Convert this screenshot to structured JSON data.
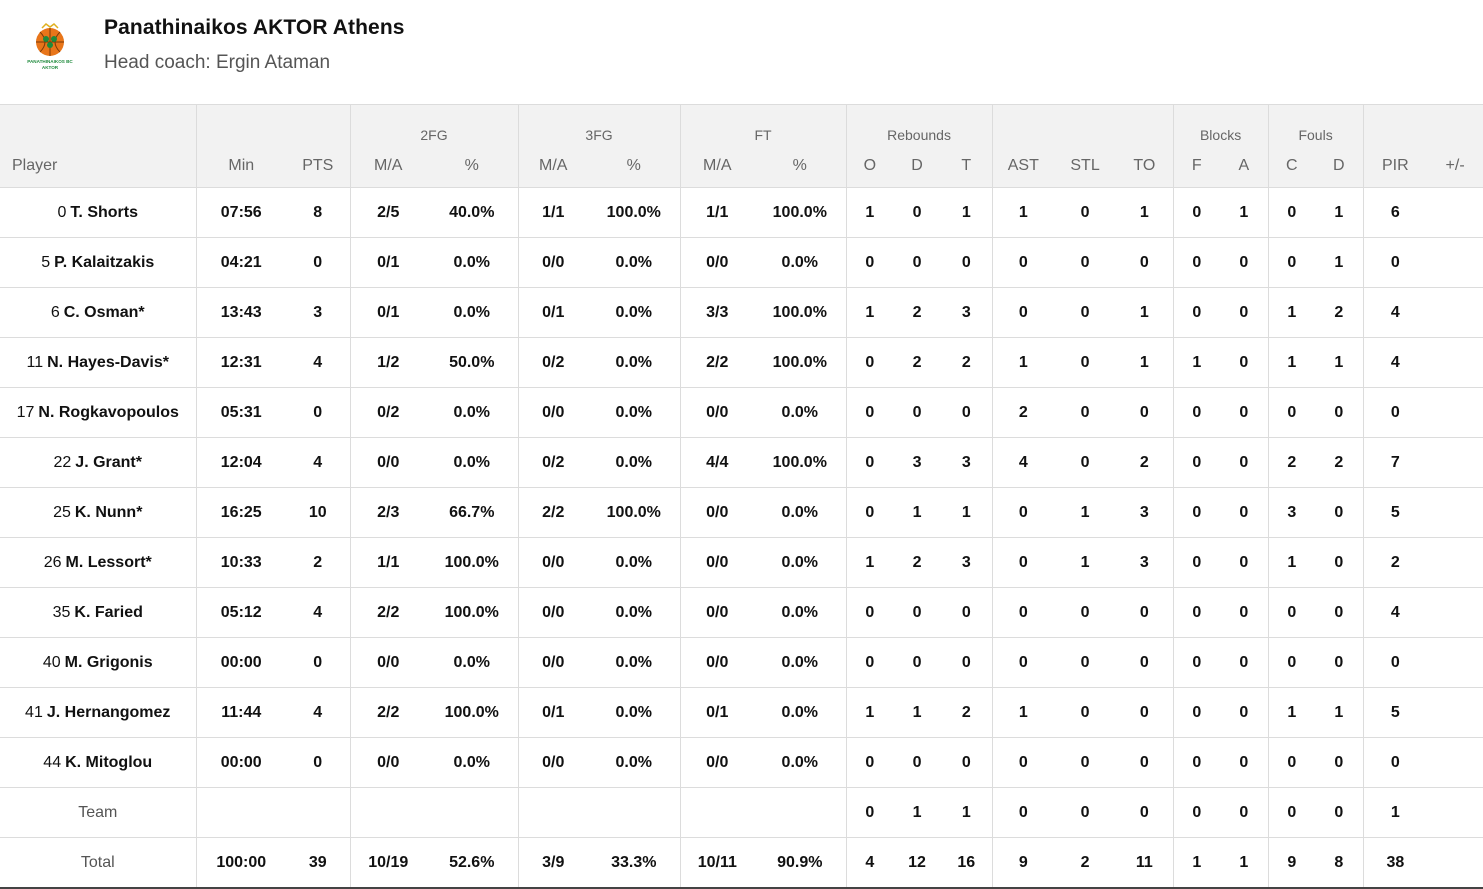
{
  "team": {
    "name": "Panathinaikos AKTOR Athens",
    "coach": "Head coach: Ergin Ataman",
    "logo_text_line1": "PANATHINAIKOS BC",
    "logo_text_line2": "AKTOR",
    "colors": {
      "logo_orange": "#e8751a",
      "logo_green": "#1e8a3c"
    }
  },
  "header_groups": {
    "fg2": "2FG",
    "fg3": "3FG",
    "ft": "FT",
    "rebounds": "Rebounds",
    "blocks": "Blocks",
    "fouls": "Fouls"
  },
  "columns": {
    "player": "Player",
    "min": "Min",
    "pts": "PTS",
    "fg2_ma": "M/A",
    "fg2_pct": "%",
    "fg3_ma": "M/A",
    "fg3_pct": "%",
    "ft_ma": "M/A",
    "ft_pct": "%",
    "reb_o": "O",
    "reb_d": "D",
    "reb_t": "T",
    "ast": "AST",
    "stl": "STL",
    "to": "TO",
    "blk_f": "F",
    "blk_a": "A",
    "foul_c": "C",
    "foul_d": "D",
    "pir": "PIR",
    "plusminus": "+/-"
  },
  "players": [
    {
      "num": "0",
      "name": "T. Shorts",
      "min": "07:56",
      "pts": "8",
      "fg2": "2/5",
      "fg2p": "40.0%",
      "fg3": "1/1",
      "fg3p": "100.0%",
      "ft": "1/1",
      "ftp": "100.0%",
      "o": "1",
      "d": "0",
      "t": "1",
      "ast": "1",
      "stl": "0",
      "to": "1",
      "bf": "0",
      "ba": "1",
      "fc": "0",
      "fd": "1",
      "pir": "6",
      "pm": ""
    },
    {
      "num": "5",
      "name": "P. Kalaitzakis",
      "min": "04:21",
      "pts": "0",
      "fg2": "0/1",
      "fg2p": "0.0%",
      "fg3": "0/0",
      "fg3p": "0.0%",
      "ft": "0/0",
      "ftp": "0.0%",
      "o": "0",
      "d": "0",
      "t": "0",
      "ast": "0",
      "stl": "0",
      "to": "0",
      "bf": "0",
      "ba": "0",
      "fc": "0",
      "fd": "1",
      "pir": "0",
      "pm": ""
    },
    {
      "num": "6",
      "name": "C. Osman*",
      "min": "13:43",
      "pts": "3",
      "fg2": "0/1",
      "fg2p": "0.0%",
      "fg3": "0/1",
      "fg3p": "0.0%",
      "ft": "3/3",
      "ftp": "100.0%",
      "o": "1",
      "d": "2",
      "t": "3",
      "ast": "0",
      "stl": "0",
      "to": "1",
      "bf": "0",
      "ba": "0",
      "fc": "1",
      "fd": "2",
      "pir": "4",
      "pm": ""
    },
    {
      "num": "11",
      "name": "N. Hayes-Davis*",
      "min": "12:31",
      "pts": "4",
      "fg2": "1/2",
      "fg2p": "50.0%",
      "fg3": "0/2",
      "fg3p": "0.0%",
      "ft": "2/2",
      "ftp": "100.0%",
      "o": "0",
      "d": "2",
      "t": "2",
      "ast": "1",
      "stl": "0",
      "to": "1",
      "bf": "1",
      "ba": "0",
      "fc": "1",
      "fd": "1",
      "pir": "4",
      "pm": ""
    },
    {
      "num": "17",
      "name": "N. Rogkavopoulos",
      "min": "05:31",
      "pts": "0",
      "fg2": "0/2",
      "fg2p": "0.0%",
      "fg3": "0/0",
      "fg3p": "0.0%",
      "ft": "0/0",
      "ftp": "0.0%",
      "o": "0",
      "d": "0",
      "t": "0",
      "ast": "2",
      "stl": "0",
      "to": "0",
      "bf": "0",
      "ba": "0",
      "fc": "0",
      "fd": "0",
      "pir": "0",
      "pm": ""
    },
    {
      "num": "22",
      "name": "J. Grant*",
      "min": "12:04",
      "pts": "4",
      "fg2": "0/0",
      "fg2p": "0.0%",
      "fg3": "0/2",
      "fg3p": "0.0%",
      "ft": "4/4",
      "ftp": "100.0%",
      "o": "0",
      "d": "3",
      "t": "3",
      "ast": "4",
      "stl": "0",
      "to": "2",
      "bf": "0",
      "ba": "0",
      "fc": "2",
      "fd": "2",
      "pir": "7",
      "pm": ""
    },
    {
      "num": "25",
      "name": "K. Nunn*",
      "min": "16:25",
      "pts": "10",
      "fg2": "2/3",
      "fg2p": "66.7%",
      "fg3": "2/2",
      "fg3p": "100.0%",
      "ft": "0/0",
      "ftp": "0.0%",
      "o": "0",
      "d": "1",
      "t": "1",
      "ast": "0",
      "stl": "1",
      "to": "3",
      "bf": "0",
      "ba": "0",
      "fc": "3",
      "fd": "0",
      "pir": "5",
      "pm": ""
    },
    {
      "num": "26",
      "name": "M. Lessort*",
      "min": "10:33",
      "pts": "2",
      "fg2": "1/1",
      "fg2p": "100.0%",
      "fg3": "0/0",
      "fg3p": "0.0%",
      "ft": "0/0",
      "ftp": "0.0%",
      "o": "1",
      "d": "2",
      "t": "3",
      "ast": "0",
      "stl": "1",
      "to": "3",
      "bf": "0",
      "ba": "0",
      "fc": "1",
      "fd": "0",
      "pir": "2",
      "pm": ""
    },
    {
      "num": "35",
      "name": "K. Faried",
      "min": "05:12",
      "pts": "4",
      "fg2": "2/2",
      "fg2p": "100.0%",
      "fg3": "0/0",
      "fg3p": "0.0%",
      "ft": "0/0",
      "ftp": "0.0%",
      "o": "0",
      "d": "0",
      "t": "0",
      "ast": "0",
      "stl": "0",
      "to": "0",
      "bf": "0",
      "ba": "0",
      "fc": "0",
      "fd": "0",
      "pir": "4",
      "pm": ""
    },
    {
      "num": "40",
      "name": "M. Grigonis",
      "min": "00:00",
      "pts": "0",
      "fg2": "0/0",
      "fg2p": "0.0%",
      "fg3": "0/0",
      "fg3p": "0.0%",
      "ft": "0/0",
      "ftp": "0.0%",
      "o": "0",
      "d": "0",
      "t": "0",
      "ast": "0",
      "stl": "0",
      "to": "0",
      "bf": "0",
      "ba": "0",
      "fc": "0",
      "fd": "0",
      "pir": "0",
      "pm": ""
    },
    {
      "num": "41",
      "name": "J. Hernangomez",
      "min": "11:44",
      "pts": "4",
      "fg2": "2/2",
      "fg2p": "100.0%",
      "fg3": "0/1",
      "fg3p": "0.0%",
      "ft": "0/1",
      "ftp": "0.0%",
      "o": "1",
      "d": "1",
      "t": "2",
      "ast": "1",
      "stl": "0",
      "to": "0",
      "bf": "0",
      "ba": "0",
      "fc": "1",
      "fd": "1",
      "pir": "5",
      "pm": ""
    },
    {
      "num": "44",
      "name": "K. Mitoglou",
      "min": "00:00",
      "pts": "0",
      "fg2": "0/0",
      "fg2p": "0.0%",
      "fg3": "0/0",
      "fg3p": "0.0%",
      "ft": "0/0",
      "ftp": "0.0%",
      "o": "0",
      "d": "0",
      "t": "0",
      "ast": "0",
      "stl": "0",
      "to": "0",
      "bf": "0",
      "ba": "0",
      "fc": "0",
      "fd": "0",
      "pir": "0",
      "pm": ""
    }
  ],
  "team_row": {
    "name": "Team",
    "min": "",
    "pts": "",
    "fg2": "",
    "fg2p": "",
    "fg3": "",
    "fg3p": "",
    "ft": "",
    "ftp": "",
    "o": "0",
    "d": "1",
    "t": "1",
    "ast": "0",
    "stl": "0",
    "to": "0",
    "bf": "0",
    "ba": "0",
    "fc": "0",
    "fd": "0",
    "pir": "1",
    "pm": ""
  },
  "total_row": {
    "name": "Total",
    "min": "100:00",
    "pts": "39",
    "fg2": "10/19",
    "fg2p": "52.6%",
    "fg3": "3/9",
    "fg3p": "33.3%",
    "ft": "10/11",
    "ftp": "90.9%",
    "o": "4",
    "d": "12",
    "t": "16",
    "ast": "9",
    "stl": "2",
    "to": "11",
    "bf": "1",
    "ba": "1",
    "fc": "9",
    "fd": "8",
    "pir": "38",
    "pm": ""
  }
}
